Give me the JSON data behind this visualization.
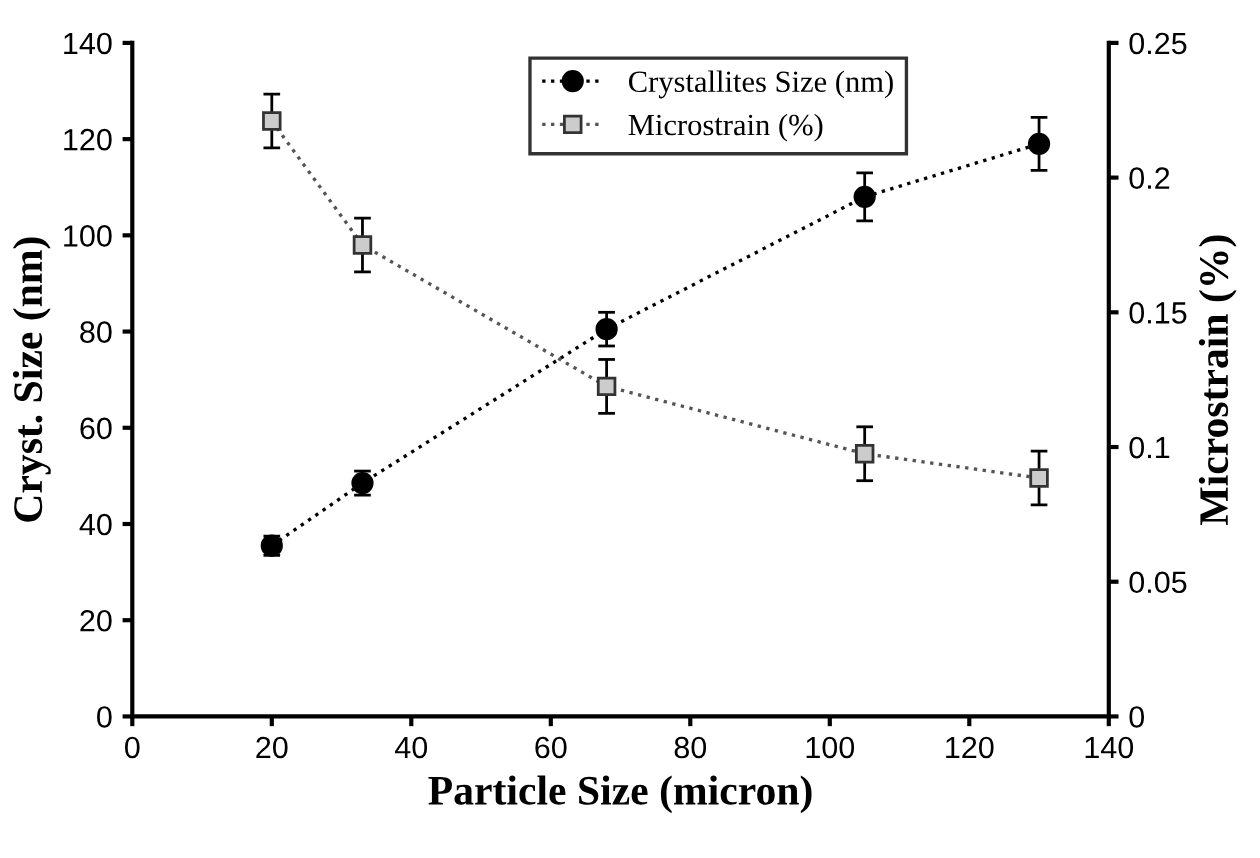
{
  "chart_data": {
    "type": "line",
    "xlabel": "Particle Size (micron)",
    "ylabel": "Cryst. Size (nm)",
    "y2label": "Microstrain (%)",
    "x": [
      20,
      33,
      68,
      105,
      130
    ],
    "series": [
      {
        "name": "Crystallites Size (nm)",
        "color": "#000000",
        "values": [
          35.5,
          48.5,
          80.5,
          108,
          119
        ],
        "errors": [
          2,
          2.5,
          3.5,
          5,
          5.5
        ],
        "marker": "circle"
      },
      {
        "name": "Microstrain (%)",
        "color": "#555555",
        "values": [
          0.221,
          0.175,
          0.1225,
          0.0975,
          0.0885
        ],
        "errors": [
          0.01,
          0.01,
          0.01,
          0.01,
          0.01
        ],
        "marker": "square",
        "axis": "y2"
      }
    ],
    "xlim": [
      0,
      140
    ],
    "xticks": [
      0,
      20,
      40,
      60,
      80,
      100,
      120,
      140
    ],
    "ylim": [
      0,
      140
    ],
    "yticks": [
      0,
      20,
      40,
      60,
      80,
      100,
      120,
      140
    ],
    "y2lim": [
      0,
      0.25
    ],
    "y2ticks": [
      0,
      0.05,
      0.1,
      0.15,
      0.2,
      0.25
    ],
    "line_style": "dotted",
    "grid": false,
    "legend": "top"
  }
}
